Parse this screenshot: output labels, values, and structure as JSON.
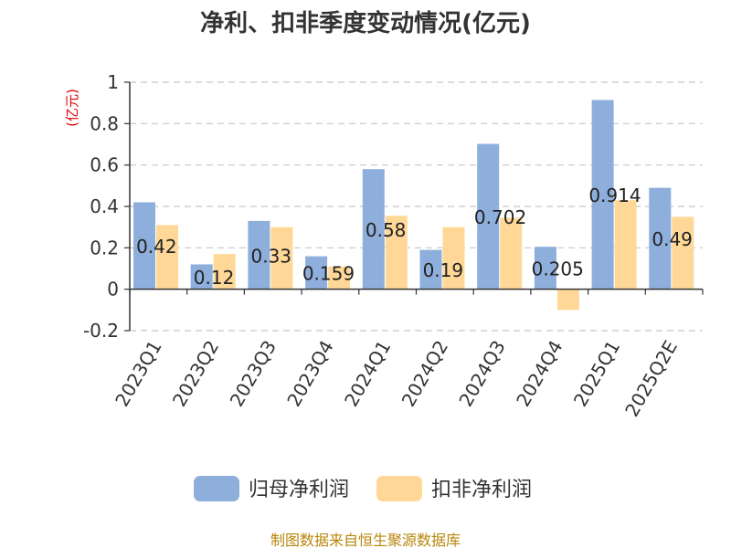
{
  "chart_data": {
    "type": "bar",
    "title": "净利、扣非季度变动情况(亿元)",
    "unit": "(亿元)",
    "categories": [
      "2023Q1",
      "2023Q2",
      "2023Q3",
      "2023Q4",
      "2024Q1",
      "2024Q2",
      "2024Q3",
      "2024Q4",
      "2025Q1",
      "2025Q2E"
    ],
    "series": [
      {
        "name": "归母净利润",
        "color": "#8eaedc",
        "values": [
          0.42,
          0.12,
          0.33,
          0.159,
          0.58,
          0.19,
          0.702,
          0.205,
          0.914,
          0.49
        ],
        "labels": [
          "0.42",
          "0.12",
          "0.33",
          "0.159",
          "0.58",
          "0.19",
          "0.702",
          "0.205",
          "0.914",
          "0.49"
        ]
      },
      {
        "name": "扣非净利润",
        "color": "#ffd898",
        "values": [
          0.31,
          0.17,
          0.3,
          0.11,
          0.355,
          0.3,
          0.345,
          -0.1,
          0.43,
          0.35
        ]
      }
    ],
    "yticks": [
      "1",
      "0.8",
      "0.6",
      "0.4",
      "0.2",
      "0",
      "-0.2"
    ],
    "ylim": [
      -0.2,
      1
    ],
    "grid": true,
    "legend_position": "bottom"
  },
  "source": "制图数据来自恒生聚源数据库"
}
